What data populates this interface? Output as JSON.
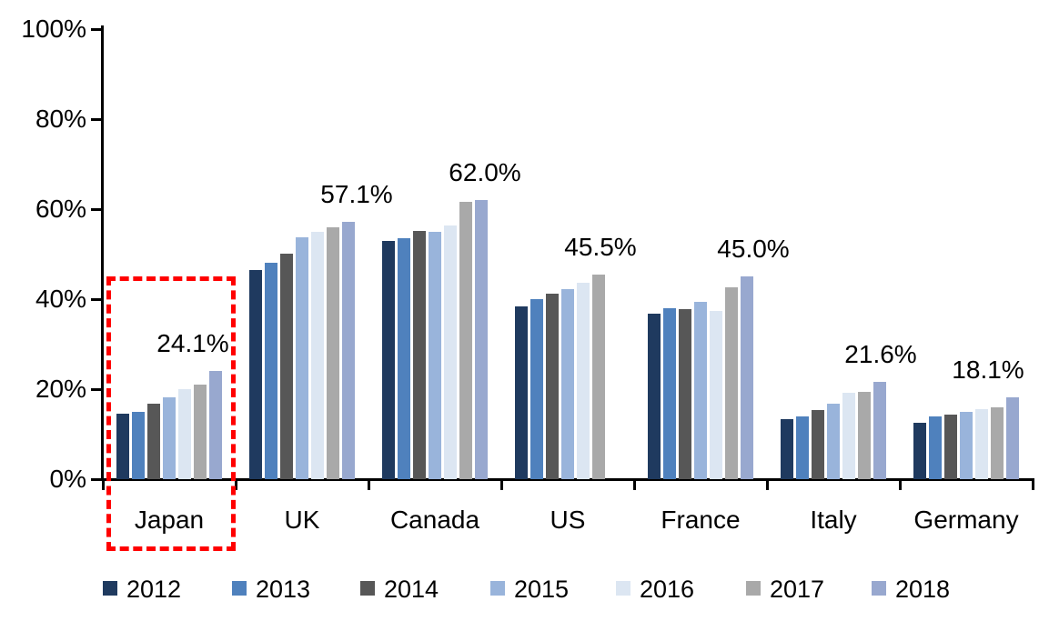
{
  "chart_data": {
    "type": "bar",
    "title": "",
    "categories": [
      "Japan",
      "UK",
      "Canada",
      "US",
      "France",
      "Italy",
      "Germany"
    ],
    "series": [
      {
        "name": "2012",
        "color": "#1F3A5F",
        "values": [
          14.6,
          46.5,
          53.0,
          38.4,
          36.8,
          13.4,
          12.6
        ]
      },
      {
        "name": "2013",
        "color": "#4F81BD",
        "values": [
          15.0,
          48.0,
          53.6,
          40.1,
          37.9,
          14.0,
          13.9
        ]
      },
      {
        "name": "2014",
        "color": "#575757",
        "values": [
          16.7,
          50.1,
          55.2,
          41.2,
          37.8,
          15.4,
          14.3
        ]
      },
      {
        "name": "2015",
        "color": "#99B4DB",
        "values": [
          18.1,
          53.7,
          54.9,
          42.3,
          39.4,
          16.8,
          14.9
        ]
      },
      {
        "name": "2016",
        "color": "#DCE6F2",
        "values": [
          20.1,
          54.9,
          56.4,
          43.7,
          37.4,
          19.2,
          15.5
        ]
      },
      {
        "name": "2017",
        "color": "#A9A9A9",
        "values": [
          21.0,
          56.0,
          61.6,
          45.5,
          42.6,
          19.4,
          16.0
        ]
      },
      {
        "name": "2018",
        "color": "#98A8CF",
        "values": [
          24.1,
          57.1,
          62.0,
          null,
          45.0,
          21.6,
          18.1
        ]
      }
    ],
    "peak_labels": [
      {
        "category": "Japan",
        "text": "24.1%"
      },
      {
        "category": "UK",
        "text": "57.1%"
      },
      {
        "category": "Canada",
        "text": "62.0%"
      },
      {
        "category": "US",
        "text": "45.5%"
      },
      {
        "category": "France",
        "text": "45.0%"
      },
      {
        "category": "Italy",
        "text": "21.6%"
      },
      {
        "category": "Germany",
        "text": "18.1%"
      }
    ],
    "y_axis": {
      "min": 0,
      "max": 100,
      "tick_step": 20,
      "tick_labels": [
        "0%",
        "20%",
        "40%",
        "60%",
        "80%",
        "100%"
      ],
      "unit": "%"
    },
    "xlabel": "",
    "ylabel": "",
    "grid": false,
    "legend": {
      "position": "bottom",
      "entries": [
        "2012",
        "2013",
        "2014",
        "2015",
        "2016",
        "2017",
        "2018"
      ]
    },
    "highlight": {
      "target": "Japan",
      "shape": "dashed-rectangle",
      "color": "#FF0000"
    }
  }
}
